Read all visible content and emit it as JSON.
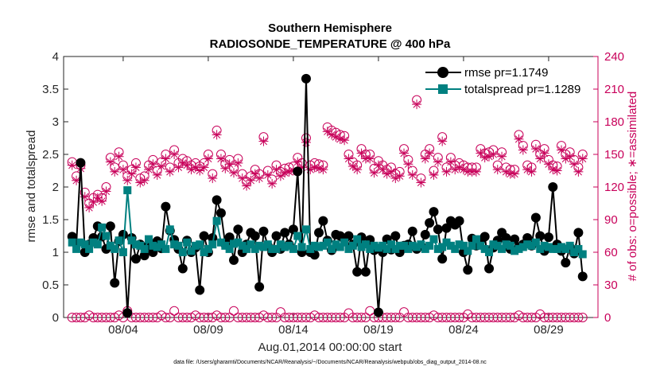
{
  "chart_data": {
    "type": "line",
    "title": "Southern Hemisphere",
    "subtitle": "RADIOSONDE_TEMPERATURE @ 400 hPa",
    "xlabel": "Aug.01,2014 00:00:00 start",
    "ylabel_left": "rmse and totalspread",
    "ylabel_right": "# of obs: o=possible; ∗=assimilated",
    "footnote": "data file: /Users/gharamti/Documents/NCAR/Reanalysis/~/Documents/NCAR/Reanalysis/webpub/obs_diag_output_2014-08.nc",
    "xlim": [
      0.5,
      31.9
    ],
    "ylim_left": [
      0,
      4
    ],
    "ylim_right": [
      0,
      240
    ],
    "x_ticks": [
      4,
      9,
      14,
      19,
      24,
      29
    ],
    "x_tick_labels": [
      "08/04",
      "08/09",
      "08/14",
      "08/19",
      "08/24",
      "08/29"
    ],
    "y_left_ticks": [
      0,
      0.5,
      1,
      1.5,
      2,
      2.5,
      3,
      3.5,
      4
    ],
    "y_left_tick_labels": [
      "0",
      "0.5",
      "1",
      "1.5",
      "2",
      "2.5",
      "3",
      "3.5",
      "4"
    ],
    "y_right_ticks": [
      0,
      30,
      60,
      90,
      120,
      150,
      180,
      210,
      240
    ],
    "y_right_tick_labels": [
      "0",
      "30",
      "60",
      "90",
      "120",
      "150",
      "180",
      "210",
      "240"
    ],
    "legend": [
      {
        "label": "rmse pr=1.1749",
        "color": "#000000",
        "marker": "circle"
      },
      {
        "label": "totalspread pr=1.1289",
        "color": "#008080",
        "marker": "square"
      }
    ],
    "series": [
      {
        "name": "rmse",
        "color": "#000000",
        "axis": "left",
        "x_start": 1.0,
        "x_step": 0.25,
        "values": [
          1.24,
          1.13,
          2.37,
          1.0,
          1.12,
          1.22,
          1.4,
          1.24,
          1.05,
          1.4,
          0.53,
          1.17,
          1.27,
          0.07,
          1.22,
          0.9,
          1.12,
          0.95,
          1.1,
          1.0,
          1.17,
          1.06,
          1.7,
          1.33,
          1.19,
          1.05,
          0.75,
          1.18,
          1.0,
          1.07,
          0.42,
          1.25,
          1.0,
          1.22,
          1.8,
          1.6,
          1.12,
          1.23,
          0.88,
          1.35,
          1.0,
          1.12,
          1.3,
          1.25,
          0.47,
          1.32,
          1.1,
          1.0,
          1.25,
          1.05,
          1.3,
          1.12,
          1.35,
          2.24,
          1.0,
          3.66,
          1.0,
          0.96,
          1.3,
          1.48,
          1.18,
          1.03,
          1.27,
          1.25,
          1.2,
          1.25,
          1.12,
          0.7,
          1.23,
          0.7,
          1.19,
          1.03,
          0.08,
          1.0,
          1.2,
          1.04,
          1.25,
          1.0,
          1.1,
          1.12,
          1.32,
          1.05,
          1.1,
          1.27,
          1.45,
          1.62,
          1.35,
          0.9,
          1.37,
          1.48,
          1.42,
          1.48,
          1.0,
          0.73,
          1.21,
          1.1,
          1.18,
          1.24,
          0.75,
          1.07,
          1.18,
          1.3,
          1.22,
          1.05,
          1.2,
          1.08,
          1.12,
          1.22,
          1.1,
          1.53,
          1.25,
          1.02,
          1.23,
          2.0,
          1.12,
          1.02,
          0.84,
          1.08,
          0.98,
          1.3,
          0.63
        ]
      },
      {
        "name": "totalspread",
        "color": "#008080",
        "axis": "left",
        "x_start": 1.0,
        "x_step": 0.25,
        "values": [
          1.15,
          1.05,
          1.15,
          1.12,
          1.05,
          1.15,
          1.12,
          1.38,
          1.25,
          1.1,
          1.05,
          1.18,
          1.0,
          1.95,
          1.18,
          1.12,
          1.1,
          1.05,
          1.2,
          1.1,
          1.08,
          1.12,
          1.05,
          1.35,
          1.12,
          1.1,
          1.0,
          1.15,
          1.02,
          1.1,
          1.12,
          1.0,
          1.05,
          1.12,
          1.48,
          1.15,
          1.1,
          1.05,
          1.13,
          1.15,
          1.1,
          1.05,
          1.12,
          1.05,
          1.1,
          1.08,
          1.12,
          1.05,
          1.05,
          1.12,
          1.08,
          1.1,
          1.05,
          1.25,
          1.08,
          1.35,
          1.05,
          1.1,
          1.08,
          1.1,
          1.15,
          1.05,
          1.12,
          1.08,
          1.15,
          1.05,
          1.1,
          1.2,
          1.08,
          1.12,
          1.05,
          1.1,
          1.07,
          1.1,
          1.05,
          1.12,
          1.05,
          1.1,
          1.1,
          1.05,
          1.1,
          1.08,
          1.12,
          1.05,
          1.1,
          1.2,
          1.05,
          1.08,
          1.15,
          1.1,
          1.05,
          1.12,
          1.1,
          1.02,
          1.1,
          1.2,
          1.1,
          1.05,
          1.0,
          1.12,
          1.1,
          1.05,
          1.12,
          1.1,
          1.02,
          1.05,
          1.08,
          1.12,
          1.1,
          1.15,
          1.05,
          1.1,
          1.08,
          1.05,
          1.05,
          1.08,
          1.05,
          1.1,
          1.0,
          1.05,
          0.97
        ]
      },
      {
        "name": "obs_possible",
        "color": "#c8005a",
        "axis": "right",
        "marker": "open-circle",
        "x_start": 1.0,
        "x_step": 0.25,
        "values": [
          143,
          130,
          140,
          115,
          105,
          110,
          113,
          110,
          120,
          147,
          138,
          152,
          140,
          130,
          136,
          142,
          128,
          130,
          140,
          145,
          135,
          143,
          150,
          138,
          154,
          142,
          146,
          144,
          140,
          142,
          139,
          142,
          150,
          132,
          172,
          150,
          141,
          145,
          137,
          146,
          132,
          125,
          130,
          136,
          132,
          166,
          135,
          127,
          140,
          134,
          137,
          138,
          139,
          147,
          142,
          165,
          140,
          142,
          141,
          140,
          175,
          172,
          170,
          168,
          167,
          150,
          143,
          140,
          155,
          150,
          150,
          137,
          144,
          140,
          136,
          138,
          132,
          134,
          155,
          145,
          135,
          200,
          128,
          150,
          155,
          135,
          147,
          166,
          138,
          147,
          140,
          142,
          140,
          138,
          138,
          138,
          155,
          151,
          152,
          154,
          140,
          152,
          138,
          136,
          136,
          168,
          158,
          140,
          138,
          159,
          150,
          155,
          145,
          140,
          139,
          158,
          150,
          152,
          145,
          138,
          150
        ]
      },
      {
        "name": "obs_assimilated",
        "color": "#c8005a",
        "axis": "right",
        "marker": "asterisk",
        "x_start": 1.0,
        "x_step": 0.25,
        "values": [
          140,
          126,
          137,
          111,
          101,
          106,
          110,
          107,
          116,
          143,
          134,
          148,
          136,
          126,
          132,
          138,
          124,
          126,
          136,
          141,
          131,
          139,
          146,
          134,
          150,
          138,
          142,
          140,
          136,
          138,
          135,
          138,
          146,
          128,
          168,
          146,
          137,
          141,
          133,
          142,
          128,
          121,
          126,
          132,
          128,
          162,
          131,
          123,
          136,
          130,
          133,
          134,
          135,
          143,
          138,
          161,
          136,
          138,
          137,
          136,
          171,
          168,
          166,
          164,
          163,
          146,
          139,
          136,
          151,
          146,
          146,
          133,
          140,
          136,
          132,
          134,
          128,
          130,
          151,
          141,
          131,
          196,
          124,
          146,
          151,
          131,
          143,
          162,
          134,
          143,
          136,
          138,
          136,
          134,
          134,
          134,
          151,
          147,
          148,
          150,
          136,
          148,
          134,
          132,
          132,
          164,
          154,
          136,
          134,
          155,
          146,
          151,
          141,
          136,
          135,
          154,
          146,
          148,
          141,
          134,
          146
        ]
      },
      {
        "name": "obs_possible_low",
        "color": "#c8005a",
        "axis": "right",
        "marker": "open-circle",
        "x_start": 1.0,
        "x_step": 0.25,
        "values": [
          0,
          0,
          0,
          0,
          2,
          0,
          0,
          0,
          0,
          0,
          0,
          2,
          0,
          6,
          0,
          0,
          0,
          0,
          0,
          0,
          0,
          2,
          0,
          0,
          6,
          0,
          0,
          0,
          0,
          2,
          0,
          0,
          0,
          0,
          2,
          0,
          0,
          0,
          6,
          0,
          0,
          0,
          0,
          0,
          0,
          2,
          0,
          0,
          0,
          5,
          0,
          0,
          0,
          0,
          0,
          0,
          0,
          2,
          0,
          0,
          0,
          0,
          0,
          0,
          0,
          4,
          0,
          0,
          0,
          0,
          6,
          0,
          0,
          0,
          0,
          0,
          0,
          0,
          5,
          0,
          0,
          0,
          0,
          0,
          0,
          2,
          0,
          0,
          0,
          0,
          0,
          0,
          0,
          3,
          0,
          0,
          0,
          0,
          0,
          0,
          0,
          0,
          0,
          0,
          0,
          2,
          0,
          0,
          0,
          0,
          3,
          0,
          0,
          0,
          0,
          0,
          0,
          0,
          0,
          0,
          0
        ]
      }
    ]
  }
}
